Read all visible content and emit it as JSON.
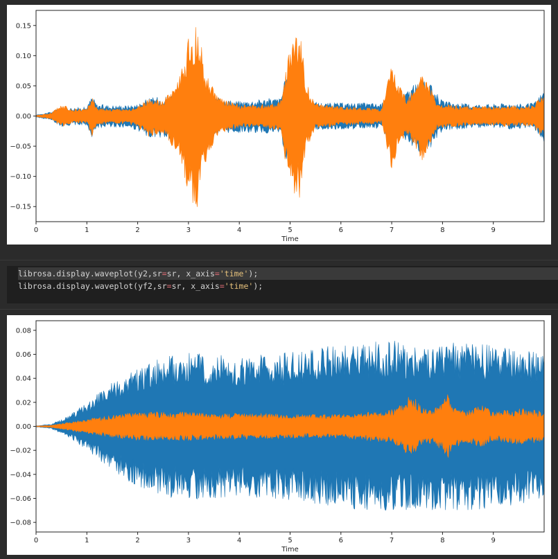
{
  "code_cell": {
    "lines": [
      {
        "call": "librosa.display.waveplot(y2,sr",
        "eq": "=",
        "arg": "sr, x_axis",
        "eq2": "=",
        "str": "'time'",
        "end": ");"
      },
      {
        "call": "librosa.display.waveplot(yf2,sr",
        "eq": "=",
        "arg": "sr, x_axis",
        "eq2": "=",
        "str": "'time'",
        "end": ");"
      }
    ]
  },
  "colors": {
    "series_blue": "#1f77b4",
    "series_orange": "#ff7f0e",
    "axis": "#222222"
  },
  "chart_data": [
    {
      "type": "area",
      "title": "",
      "xlabel": "Time",
      "ylabel": "",
      "xlim": [
        0,
        10
      ],
      "ylim": [
        -0.175,
        0.175
      ],
      "xticks": [
        "0",
        "1",
        "2",
        "3",
        "4",
        "5",
        "6",
        "7",
        "8",
        "9"
      ],
      "yticks": [
        {
          "value": 0.15,
          "label": "0.15"
        },
        {
          "value": 0.1,
          "label": "0.10"
        },
        {
          "value": 0.05,
          "label": "0.05"
        },
        {
          "value": 0.0,
          "label": "0.00"
        },
        {
          "value": -0.05,
          "label": "−0.05"
        },
        {
          "value": -0.1,
          "label": "−0.10"
        },
        {
          "value": -0.15,
          "label": "−0.15"
        }
      ],
      "series": [
        {
          "color": "#1f77b4",
          "x": [
            0,
            0.3,
            0.5,
            0.7,
            1.0,
            1.1,
            1.2,
            1.5,
            1.8,
            2.0,
            2.2,
            2.5,
            2.8,
            3.0,
            3.2,
            3.4,
            3.6,
            4.0,
            4.3,
            4.6,
            4.8,
            5.0,
            5.2,
            5.4,
            5.7,
            6.0,
            6.3,
            6.6,
            6.8,
            7.0,
            7.2,
            7.4,
            7.6,
            7.8,
            8.0,
            8.3,
            8.6,
            9.0,
            9.3,
            9.6,
            9.8,
            10.0
          ],
          "upper": [
            0.002,
            0.007,
            0.016,
            0.014,
            0.015,
            0.035,
            0.02,
            0.018,
            0.018,
            0.02,
            0.03,
            0.033,
            0.04,
            0.085,
            0.06,
            0.035,
            0.03,
            0.025,
            0.027,
            0.03,
            0.03,
            0.09,
            0.035,
            0.025,
            0.022,
            0.022,
            0.022,
            0.022,
            0.02,
            0.06,
            0.035,
            0.05,
            0.06,
            0.05,
            0.025,
            0.022,
            0.02,
            0.02,
            0.022,
            0.02,
            0.022,
            0.045
          ],
          "lower": [
            -0.002,
            -0.007,
            -0.018,
            -0.015,
            -0.016,
            -0.035,
            -0.02,
            -0.018,
            -0.02,
            -0.025,
            -0.035,
            -0.038,
            -0.045,
            -0.09,
            -0.06,
            -0.035,
            -0.03,
            -0.028,
            -0.028,
            -0.03,
            -0.03,
            -0.095,
            -0.035,
            -0.025,
            -0.022,
            -0.022,
            -0.022,
            -0.022,
            -0.02,
            -0.055,
            -0.035,
            -0.05,
            -0.065,
            -0.05,
            -0.025,
            -0.022,
            -0.02,
            -0.02,
            -0.022,
            -0.02,
            -0.022,
            -0.045
          ]
        },
        {
          "color": "#ff7f0e",
          "x": [
            0,
            0.3,
            0.5,
            0.7,
            1.0,
            1.1,
            1.2,
            1.5,
            1.8,
            2.0,
            2.2,
            2.5,
            2.8,
            3.0,
            3.15,
            3.2,
            3.3,
            3.6,
            4.0,
            4.3,
            4.6,
            4.8,
            5.0,
            5.2,
            5.3,
            5.5,
            5.8,
            6.0,
            6.3,
            6.6,
            6.8,
            7.0,
            7.1,
            7.3,
            7.5,
            7.6,
            7.7,
            7.9,
            8.2,
            8.6,
            9.0,
            9.3,
            9.6,
            9.8,
            10.0
          ],
          "upper": [
            0.001,
            0.005,
            0.02,
            0.012,
            0.012,
            0.035,
            0.015,
            0.012,
            0.012,
            0.015,
            0.03,
            0.025,
            0.06,
            0.13,
            0.15,
            0.16,
            0.08,
            0.03,
            0.02,
            0.018,
            0.022,
            0.025,
            0.12,
            0.145,
            0.06,
            0.02,
            0.018,
            0.015,
            0.015,
            0.014,
            0.012,
            0.085,
            0.06,
            0.03,
            0.06,
            0.07,
            0.06,
            0.02,
            0.018,
            0.016,
            0.016,
            0.018,
            0.016,
            0.02,
            0.04
          ],
          "lower": [
            -0.001,
            -0.005,
            -0.02,
            -0.012,
            -0.012,
            -0.035,
            -0.015,
            -0.012,
            -0.014,
            -0.02,
            -0.035,
            -0.03,
            -0.065,
            -0.13,
            -0.155,
            -0.16,
            -0.085,
            -0.03,
            -0.02,
            -0.018,
            -0.022,
            -0.025,
            -0.12,
            -0.14,
            -0.06,
            -0.02,
            -0.018,
            -0.015,
            -0.015,
            -0.014,
            -0.012,
            -0.09,
            -0.06,
            -0.03,
            -0.06,
            -0.075,
            -0.06,
            -0.02,
            -0.018,
            -0.016,
            -0.016,
            -0.018,
            -0.016,
            -0.02,
            -0.04
          ]
        }
      ]
    },
    {
      "type": "area",
      "title": "",
      "xlabel": "Time",
      "ylabel": "",
      "xlim": [
        0,
        10
      ],
      "ylim": [
        -0.088,
        0.088
      ],
      "xticks": [
        "0",
        "1",
        "2",
        "3",
        "4",
        "5",
        "6",
        "7",
        "8",
        "9"
      ],
      "yticks": [
        {
          "value": 0.08,
          "label": "0.08"
        },
        {
          "value": 0.06,
          "label": "0.06"
        },
        {
          "value": 0.04,
          "label": "0.04"
        },
        {
          "value": 0.02,
          "label": "0.02"
        },
        {
          "value": 0.0,
          "label": "0.00"
        },
        {
          "value": -0.02,
          "label": "−0.02"
        },
        {
          "value": -0.04,
          "label": "−0.04"
        },
        {
          "value": -0.06,
          "label": "−0.06"
        },
        {
          "value": -0.08,
          "label": "−0.08"
        }
      ],
      "series": [
        {
          "color": "#1f77b4",
          "x": [
            0,
            0.3,
            0.6,
            1.0,
            1.3,
            1.6,
            2.0,
            2.3,
            2.6,
            3.0,
            3.5,
            4.0,
            4.5,
            5.0,
            5.5,
            6.0,
            6.5,
            7.0,
            7.5,
            8.0,
            8.5,
            9.0,
            9.5,
            10.0
          ],
          "upper": [
            0.0005,
            0.002,
            0.008,
            0.02,
            0.03,
            0.04,
            0.05,
            0.055,
            0.06,
            0.062,
            0.06,
            0.058,
            0.06,
            0.062,
            0.065,
            0.07,
            0.07,
            0.072,
            0.07,
            0.07,
            0.07,
            0.068,
            0.065,
            0.06
          ],
          "lower": [
            -0.0005,
            -0.002,
            -0.008,
            -0.02,
            -0.03,
            -0.04,
            -0.05,
            -0.055,
            -0.06,
            -0.062,
            -0.06,
            -0.058,
            -0.06,
            -0.062,
            -0.065,
            -0.068,
            -0.07,
            -0.07,
            -0.07,
            -0.07,
            -0.07,
            -0.068,
            -0.065,
            -0.06
          ]
        },
        {
          "color": "#ff7f0e",
          "x": [
            0,
            0.3,
            0.6,
            1.0,
            1.3,
            1.6,
            2.0,
            2.5,
            3.0,
            3.5,
            4.0,
            4.5,
            5.0,
            5.5,
            6.0,
            6.5,
            7.0,
            7.2,
            7.4,
            7.6,
            7.8,
            8.0,
            8.1,
            8.2,
            8.5,
            8.8,
            9.0,
            9.3,
            9.6,
            10.0
          ],
          "upper": [
            0.0003,
            0.001,
            0.003,
            0.006,
            0.008,
            0.01,
            0.012,
            0.012,
            0.012,
            0.011,
            0.011,
            0.011,
            0.01,
            0.01,
            0.01,
            0.012,
            0.014,
            0.02,
            0.027,
            0.015,
            0.016,
            0.02,
            0.028,
            0.018,
            0.014,
            0.018,
            0.012,
            0.014,
            0.016,
            0.012
          ],
          "lower": [
            -0.0003,
            -0.001,
            -0.003,
            -0.006,
            -0.008,
            -0.01,
            -0.012,
            -0.012,
            -0.012,
            -0.011,
            -0.011,
            -0.011,
            -0.01,
            -0.01,
            -0.01,
            -0.012,
            -0.014,
            -0.02,
            -0.026,
            -0.015,
            -0.016,
            -0.02,
            -0.028,
            -0.018,
            -0.014,
            -0.018,
            -0.012,
            -0.014,
            -0.016,
            -0.012
          ]
        }
      ]
    }
  ]
}
